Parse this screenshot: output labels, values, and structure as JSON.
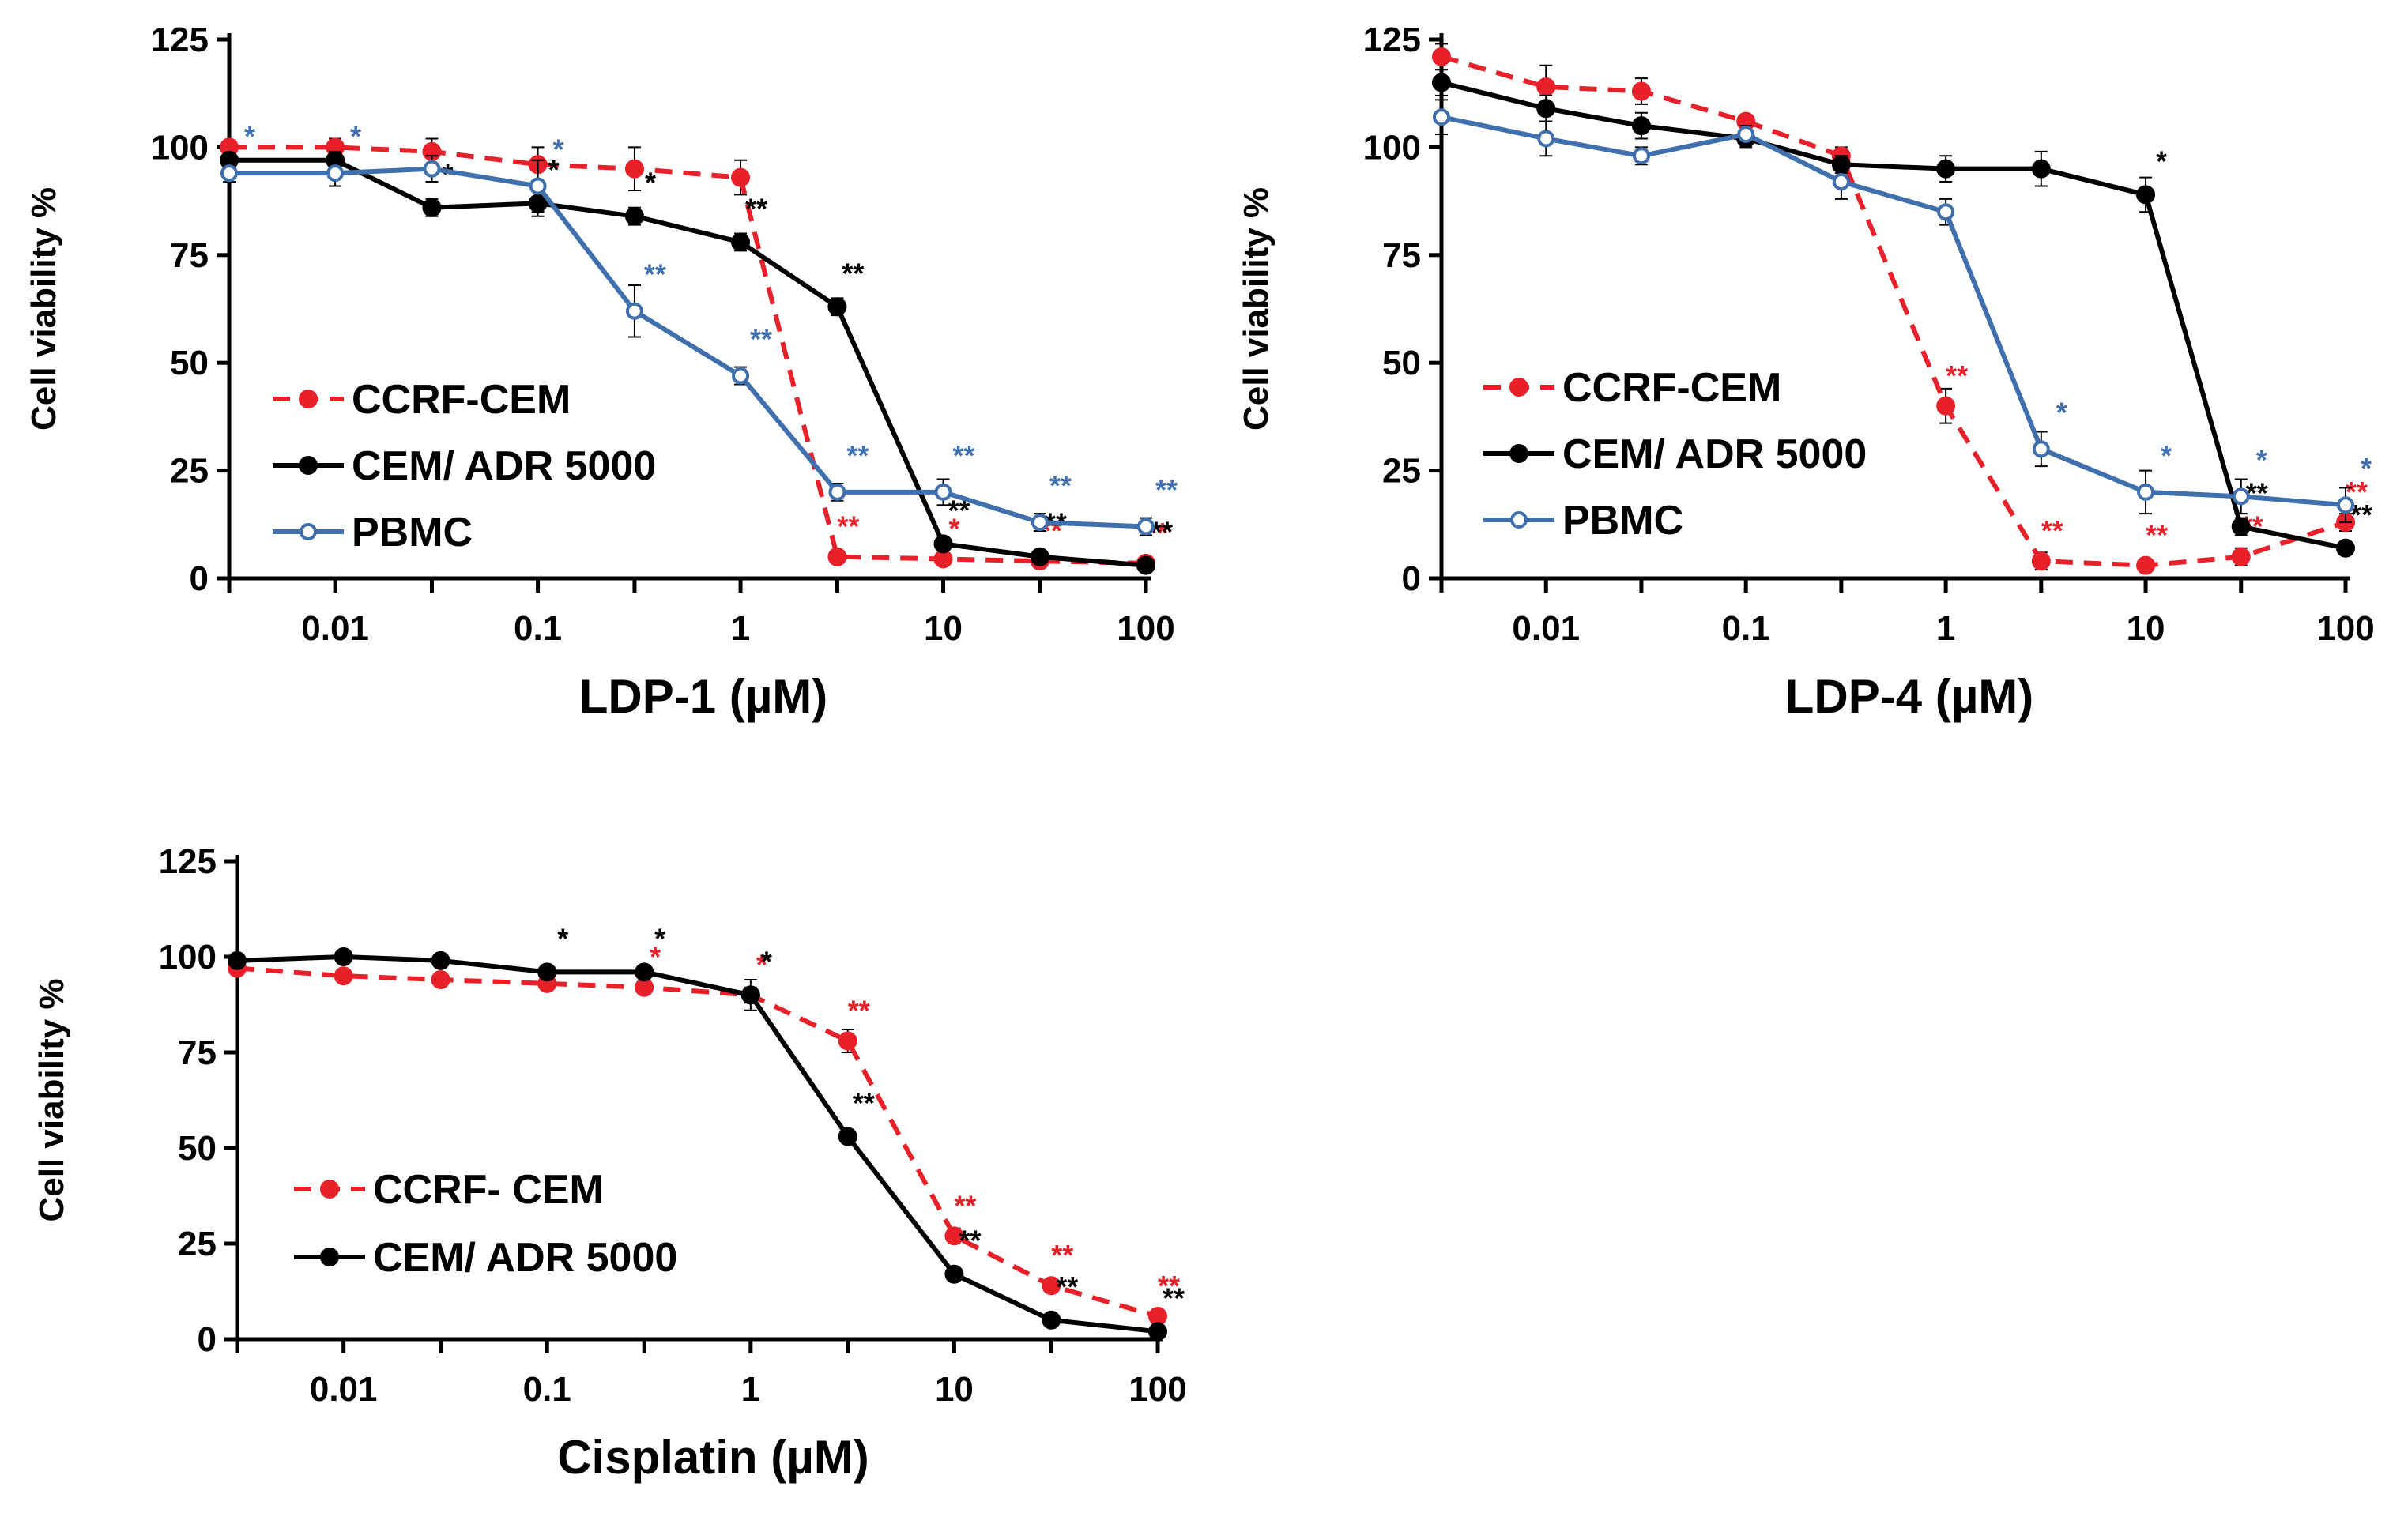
{
  "chart_data": [
    {
      "type": "line",
      "title": "",
      "xlabel": "LDP-1 (µM)",
      "ylabel": "Cell viability %",
      "xscale": "log",
      "xlim": [
        0.003,
        100
      ],
      "ylim": [
        0,
        125
      ],
      "xticks": [
        0.01,
        0.1,
        1,
        10,
        100
      ],
      "xtick_labels": [
        "0.01",
        "0.1",
        "1",
        "10",
        "100"
      ],
      "yticks": [
        0,
        25,
        50,
        75,
        100,
        125
      ],
      "ytick_labels": [
        "0",
        "25",
        "50",
        "75",
        "100",
        "125"
      ],
      "legend_position": "left-center",
      "x": [
        0.003,
        0.01,
        0.03,
        0.1,
        0.3,
        1,
        3,
        10,
        30,
        100
      ],
      "series": [
        {
          "name": "CCRF-CEM",
          "color": "#e8202a",
          "dash": true,
          "marker": "filled",
          "values": [
            100,
            100,
            99,
            96,
            95,
            93,
            5,
            4.5,
            4,
            3.5
          ],
          "errors": [
            1,
            2,
            3,
            4,
            5,
            4,
            1,
            1,
            1,
            1
          ],
          "sig": [
            "",
            "",
            "",
            "",
            "",
            "",
            "**",
            "*",
            "**",
            "**"
          ]
        },
        {
          "name": "CEM/ ADR 5000",
          "color": "#000000",
          "dash": false,
          "marker": "filled",
          "values": [
            97,
            97,
            86,
            87,
            84,
            78,
            63,
            8,
            5,
            3
          ],
          "errors": [
            1,
            2,
            2,
            3,
            2,
            2,
            2,
            1,
            1,
            1
          ],
          "sig": [
            "",
            "",
            "*",
            "*",
            "*",
            "**",
            "**",
            "**",
            "**",
            "**"
          ]
        },
        {
          "name": "PBMC",
          "color": "#3f6fad",
          "dash": false,
          "marker": "open",
          "values": [
            94,
            94,
            95,
            91,
            62,
            47,
            20,
            20,
            13,
            12
          ],
          "errors": [
            2,
            3,
            3,
            6,
            6,
            2,
            2,
            3,
            2,
            2
          ],
          "sig": [
            "*",
            "*",
            "",
            "*",
            "**",
            "**",
            "**",
            "**",
            "**",
            "**"
          ]
        }
      ]
    },
    {
      "type": "line",
      "title": "",
      "xlabel": "LDP-4 (µM)",
      "ylabel": "Cell viability %",
      "xscale": "log",
      "xlim": [
        0.003,
        100
      ],
      "ylim": [
        0,
        125
      ],
      "xticks": [
        0.01,
        0.1,
        1,
        10,
        100
      ],
      "xtick_labels": [
        "0.01",
        "0.1",
        "1",
        "10",
        "100"
      ],
      "yticks": [
        0,
        25,
        50,
        75,
        100,
        125
      ],
      "ytick_labels": [
        "0",
        "25",
        "50",
        "75",
        "100",
        "125"
      ],
      "legend_position": "left-center",
      "x": [
        0.003,
        0.01,
        0.03,
        0.1,
        0.3,
        1,
        3,
        10,
        30,
        100
      ],
      "series": [
        {
          "name": "CCRF-CEM",
          "color": "#e8202a",
          "dash": true,
          "marker": "filled",
          "values": [
            121,
            114,
            113,
            106,
            98,
            40,
            4,
            3,
            5,
            13
          ],
          "errors": [
            3,
            5,
            3,
            1,
            2,
            4,
            2,
            1,
            2,
            2
          ],
          "sig": [
            "",
            "",
            "",
            "",
            "",
            "**",
            "**",
            "**",
            "**",
            "**"
          ]
        },
        {
          "name": "CEM/ ADR 5000",
          "color": "#000000",
          "dash": false,
          "marker": "filled",
          "values": [
            115,
            109,
            105,
            102,
            96,
            95,
            95,
            89,
            12,
            7
          ],
          "errors": [
            3,
            3,
            3,
            2,
            2,
            3,
            4,
            4,
            2,
            1
          ],
          "sig": [
            "",
            "",
            "",
            "",
            "",
            "",
            "",
            "*",
            "**",
            "**"
          ]
        },
        {
          "name": "PBMC",
          "color": "#3f6fad",
          "dash": false,
          "marker": "open",
          "values": [
            107,
            102,
            98,
            103,
            92,
            85,
            30,
            20,
            19,
            17
          ],
          "errors": [
            4,
            4,
            2,
            2,
            4,
            3,
            4,
            5,
            4,
            4
          ],
          "sig": [
            "",
            "",
            "",
            "",
            "",
            "",
            "*",
            "*",
            "*",
            "*"
          ]
        }
      ]
    },
    {
      "type": "line",
      "title": "",
      "xlabel": "Cisplatin (µM)",
      "ylabel": "Cell viability %",
      "xscale": "log",
      "xlim": [
        0.003,
        100
      ],
      "ylim": [
        0,
        125
      ],
      "xticks": [
        0.01,
        0.1,
        1,
        10,
        100
      ],
      "xtick_labels": [
        "0.01",
        "0.1",
        "1",
        "10",
        "100"
      ],
      "yticks": [
        0,
        25,
        50,
        75,
        100,
        125
      ],
      "ytick_labels": [
        "0",
        "25",
        "50",
        "75",
        "100",
        "125"
      ],
      "legend_position": "bottom-left",
      "x": [
        0.003,
        0.01,
        0.03,
        0.1,
        0.3,
        1,
        3,
        10,
        30,
        100
      ],
      "series": [
        {
          "name": "CCRF- CEM",
          "color": "#e8202a",
          "dash": true,
          "marker": "filled",
          "values": [
            97,
            95,
            94,
            93,
            92,
            90,
            78,
            27,
            14,
            6
          ],
          "errors": [
            1,
            1,
            1,
            1,
            1,
            2,
            3,
            2,
            1,
            1
          ],
          "sig": [
            "",
            "",
            "",
            "",
            "*",
            "*",
            "**",
            "**",
            "**",
            "**"
          ]
        },
        {
          "name": "CEM/ ADR 5000",
          "color": "#000000",
          "dash": false,
          "marker": "filled",
          "values": [
            99,
            100,
            99,
            96,
            96,
            90,
            53,
            17,
            5,
            2
          ],
          "errors": [
            1,
            1,
            1,
            1,
            1,
            4,
            1,
            1,
            1,
            1
          ],
          "sig": [
            "",
            "",
            "",
            "*",
            "*",
            "*",
            "**",
            "**",
            "**",
            "**"
          ]
        }
      ]
    }
  ]
}
